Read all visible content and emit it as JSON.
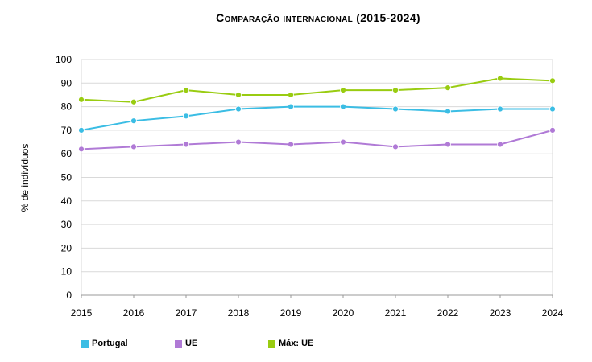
{
  "chart_data": {
    "type": "line",
    "title": "Comparação internacional (2015-2024)",
    "xlabel": "",
    "ylabel": "% de indivíduos",
    "x": [
      "2015",
      "2016",
      "2017",
      "2018",
      "2019",
      "2020",
      "2021",
      "2022",
      "2023",
      "2024"
    ],
    "ylim": [
      0,
      100
    ],
    "yticks": [
      "0",
      "10",
      "20",
      "30",
      "40",
      "50",
      "60",
      "70",
      "80",
      "90",
      "100"
    ],
    "grid": true,
    "legend_position": "bottom",
    "series": [
      {
        "name": "Portugal",
        "color": "#3bbde4",
        "values": [
          70,
          74,
          76,
          79,
          80,
          80,
          79,
          78,
          79,
          79
        ]
      },
      {
        "name": "UE",
        "color": "#b07ad6",
        "values": [
          62,
          63,
          64,
          65,
          64,
          65,
          63,
          64,
          64,
          70
        ]
      },
      {
        "name": "Máx: UE",
        "color": "#99cc11",
        "values": [
          83,
          82,
          87,
          85,
          85,
          87,
          87,
          88,
          92,
          91
        ]
      }
    ]
  }
}
